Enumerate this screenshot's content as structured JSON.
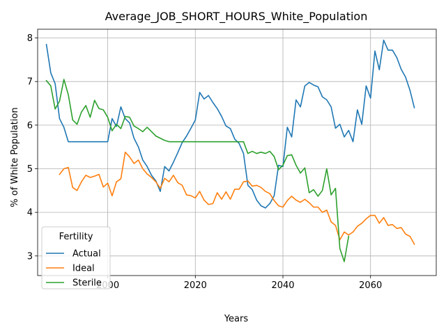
{
  "chart_data": {
    "type": "line",
    "title": "Average_JOB_SHORT_HOURS_White_Population",
    "xlabel": "Years",
    "ylabel": "% of White Population",
    "xlim": [
      1984,
      2075
    ],
    "ylim": [
      2.55,
      8.2
    ],
    "xticks": [
      2000,
      2020,
      2040,
      2060
    ],
    "yticks": [
      3,
      4,
      5,
      6,
      7,
      8
    ],
    "grid": true,
    "legend": {
      "title": "Fertility",
      "placement": "lower-left"
    },
    "series": [
      {
        "name": "Actual",
        "color": "#1f77b4",
        "points": [
          [
            1986,
            7.85
          ],
          [
            1987,
            7.2
          ],
          [
            1988,
            6.95
          ],
          [
            1989,
            6.15
          ],
          [
            1990,
            5.95
          ],
          [
            1991,
            5.62
          ],
          [
            1992,
            5.62
          ],
          [
            1994,
            5.62
          ],
          [
            1996,
            5.62
          ],
          [
            1998,
            5.62
          ],
          [
            2000,
            5.62
          ],
          [
            2001,
            6.15
          ],
          [
            2002,
            5.97
          ],
          [
            2003,
            6.42
          ],
          [
            2004,
            6.15
          ],
          [
            2005,
            6.05
          ],
          [
            2006,
            5.7
          ],
          [
            2007,
            5.5
          ],
          [
            2008,
            5.2
          ],
          [
            2009,
            5.05
          ],
          [
            2010,
            4.85
          ],
          [
            2011,
            4.72
          ],
          [
            2012,
            4.48
          ],
          [
            2013,
            5.05
          ],
          [
            2014,
            4.95
          ],
          [
            2015,
            5.15
          ],
          [
            2016,
            5.37
          ],
          [
            2017,
            5.6
          ],
          [
            2018,
            5.75
          ],
          [
            2019,
            5.93
          ],
          [
            2020,
            6.12
          ],
          [
            2021,
            6.75
          ],
          [
            2022,
            6.6
          ],
          [
            2023,
            6.68
          ],
          [
            2024,
            6.52
          ],
          [
            2025,
            6.38
          ],
          [
            2026,
            6.2
          ],
          [
            2027,
            5.98
          ],
          [
            2028,
            5.92
          ],
          [
            2029,
            5.68
          ],
          [
            2030,
            5.58
          ],
          [
            2031,
            5.35
          ],
          [
            2032,
            4.62
          ],
          [
            2033,
            4.52
          ],
          [
            2034,
            4.28
          ],
          [
            2035,
            4.15
          ],
          [
            2036,
            4.1
          ],
          [
            2037,
            4.2
          ],
          [
            2038,
            4.38
          ],
          [
            2039,
            5.08
          ],
          [
            2040,
            5.05
          ],
          [
            2041,
            5.95
          ],
          [
            2042,
            5.73
          ],
          [
            2043,
            6.58
          ],
          [
            2044,
            6.42
          ],
          [
            2045,
            6.9
          ],
          [
            2046,
            6.98
          ],
          [
            2047,
            6.92
          ],
          [
            2048,
            6.88
          ],
          [
            2049,
            6.65
          ],
          [
            2050,
            6.58
          ],
          [
            2051,
            6.42
          ],
          [
            2052,
            5.93
          ],
          [
            2053,
            6.02
          ],
          [
            2054,
            5.73
          ],
          [
            2055,
            5.88
          ],
          [
            2056,
            5.62
          ],
          [
            2057,
            6.35
          ],
          [
            2058,
            6.02
          ],
          [
            2059,
            6.9
          ],
          [
            2060,
            6.62
          ],
          [
            2061,
            7.7
          ],
          [
            2062,
            7.27
          ],
          [
            2063,
            7.95
          ],
          [
            2064,
            7.72
          ],
          [
            2065,
            7.72
          ],
          [
            2066,
            7.55
          ],
          [
            2067,
            7.28
          ],
          [
            2068,
            7.1
          ],
          [
            2069,
            6.8
          ],
          [
            2070,
            6.4
          ]
        ]
      },
      {
        "name": "Ideal",
        "color": "#ff7f0e",
        "points": [
          [
            1989,
            4.87
          ],
          [
            1990,
            5.0
          ],
          [
            1991,
            5.03
          ],
          [
            1992,
            4.57
          ],
          [
            1993,
            4.5
          ],
          [
            1994,
            4.7
          ],
          [
            1995,
            4.85
          ],
          [
            1996,
            4.8
          ],
          [
            1997,
            4.83
          ],
          [
            1998,
            4.87
          ],
          [
            1999,
            4.58
          ],
          [
            2000,
            4.67
          ],
          [
            2001,
            4.38
          ],
          [
            2002,
            4.7
          ],
          [
            2003,
            4.77
          ],
          [
            2004,
            5.38
          ],
          [
            2005,
            5.27
          ],
          [
            2006,
            5.12
          ],
          [
            2007,
            5.2
          ],
          [
            2008,
            5.0
          ],
          [
            2009,
            4.88
          ],
          [
            2010,
            4.8
          ],
          [
            2011,
            4.7
          ],
          [
            2012,
            4.55
          ],
          [
            2013,
            4.78
          ],
          [
            2014,
            4.7
          ],
          [
            2015,
            4.85
          ],
          [
            2016,
            4.68
          ],
          [
            2017,
            4.62
          ],
          [
            2018,
            4.4
          ],
          [
            2019,
            4.38
          ],
          [
            2020,
            4.33
          ],
          [
            2021,
            4.48
          ],
          [
            2022,
            4.28
          ],
          [
            2023,
            4.18
          ],
          [
            2024,
            4.2
          ],
          [
            2025,
            4.45
          ],
          [
            2026,
            4.3
          ],
          [
            2027,
            4.47
          ],
          [
            2028,
            4.3
          ],
          [
            2029,
            4.53
          ],
          [
            2030,
            4.53
          ],
          [
            2031,
            4.7
          ],
          [
            2032,
            4.72
          ],
          [
            2033,
            4.6
          ],
          [
            2034,
            4.62
          ],
          [
            2035,
            4.57
          ],
          [
            2036,
            4.48
          ],
          [
            2037,
            4.43
          ],
          [
            2038,
            4.27
          ],
          [
            2039,
            4.15
          ],
          [
            2040,
            4.12
          ],
          [
            2041,
            4.27
          ],
          [
            2042,
            4.37
          ],
          [
            2043,
            4.28
          ],
          [
            2044,
            4.23
          ],
          [
            2045,
            4.3
          ],
          [
            2046,
            4.22
          ],
          [
            2047,
            4.12
          ],
          [
            2048,
            4.12
          ],
          [
            2049,
            4.0
          ],
          [
            2050,
            4.05
          ],
          [
            2051,
            3.78
          ],
          [
            2052,
            3.7
          ],
          [
            2053,
            3.37
          ],
          [
            2054,
            3.55
          ],
          [
            2055,
            3.48
          ],
          [
            2056,
            3.55
          ],
          [
            2057,
            3.68
          ],
          [
            2058,
            3.75
          ],
          [
            2059,
            3.85
          ],
          [
            2060,
            3.93
          ],
          [
            2061,
            3.93
          ],
          [
            2062,
            3.75
          ],
          [
            2063,
            3.88
          ],
          [
            2064,
            3.7
          ],
          [
            2065,
            3.72
          ],
          [
            2066,
            3.63
          ],
          [
            2067,
            3.65
          ],
          [
            2068,
            3.5
          ],
          [
            2069,
            3.45
          ],
          [
            2070,
            3.27
          ]
        ]
      },
      {
        "name": "Sterile",
        "color": "#2ca02c",
        "points": [
          [
            1986,
            7.02
          ],
          [
            1987,
            6.9
          ],
          [
            1988,
            6.37
          ],
          [
            1989,
            6.55
          ],
          [
            1990,
            7.05
          ],
          [
            1991,
            6.7
          ],
          [
            1992,
            6.12
          ],
          [
            1993,
            6.02
          ],
          [
            1994,
            6.3
          ],
          [
            1995,
            6.45
          ],
          [
            1996,
            6.18
          ],
          [
            1997,
            6.57
          ],
          [
            1998,
            6.38
          ],
          [
            1999,
            6.35
          ],
          [
            2000,
            6.18
          ],
          [
            2001,
            5.87
          ],
          [
            2002,
            6.02
          ],
          [
            2003,
            5.92
          ],
          [
            2004,
            6.2
          ],
          [
            2005,
            6.18
          ],
          [
            2006,
            5.98
          ],
          [
            2007,
            5.92
          ],
          [
            2008,
            5.85
          ],
          [
            2009,
            5.95
          ],
          [
            2010,
            5.85
          ],
          [
            2011,
            5.75
          ],
          [
            2012,
            5.7
          ],
          [
            2013,
            5.65
          ],
          [
            2014,
            5.62
          ],
          [
            2016,
            5.62
          ],
          [
            2018,
            5.62
          ],
          [
            2020,
            5.62
          ],
          [
            2022,
            5.62
          ],
          [
            2024,
            5.62
          ],
          [
            2026,
            5.62
          ],
          [
            2028,
            5.62
          ],
          [
            2030,
            5.62
          ],
          [
            2031,
            5.62
          ],
          [
            2032,
            5.35
          ],
          [
            2033,
            5.4
          ],
          [
            2034,
            5.35
          ],
          [
            2035,
            5.38
          ],
          [
            2036,
            5.35
          ],
          [
            2037,
            5.4
          ],
          [
            2038,
            5.28
          ],
          [
            2039,
            4.98
          ],
          [
            2040,
            5.08
          ],
          [
            2041,
            5.3
          ],
          [
            2042,
            5.32
          ],
          [
            2043,
            5.08
          ],
          [
            2044,
            4.9
          ],
          [
            2045,
            5.02
          ],
          [
            2046,
            4.45
          ],
          [
            2047,
            4.52
          ],
          [
            2048,
            4.37
          ],
          [
            2049,
            4.5
          ],
          [
            2050,
            5.0
          ],
          [
            2051,
            4.4
          ],
          [
            2052,
            4.55
          ],
          [
            2053,
            3.17
          ],
          [
            2054,
            2.87
          ],
          [
            2055,
            3.45
          ]
        ]
      }
    ]
  }
}
